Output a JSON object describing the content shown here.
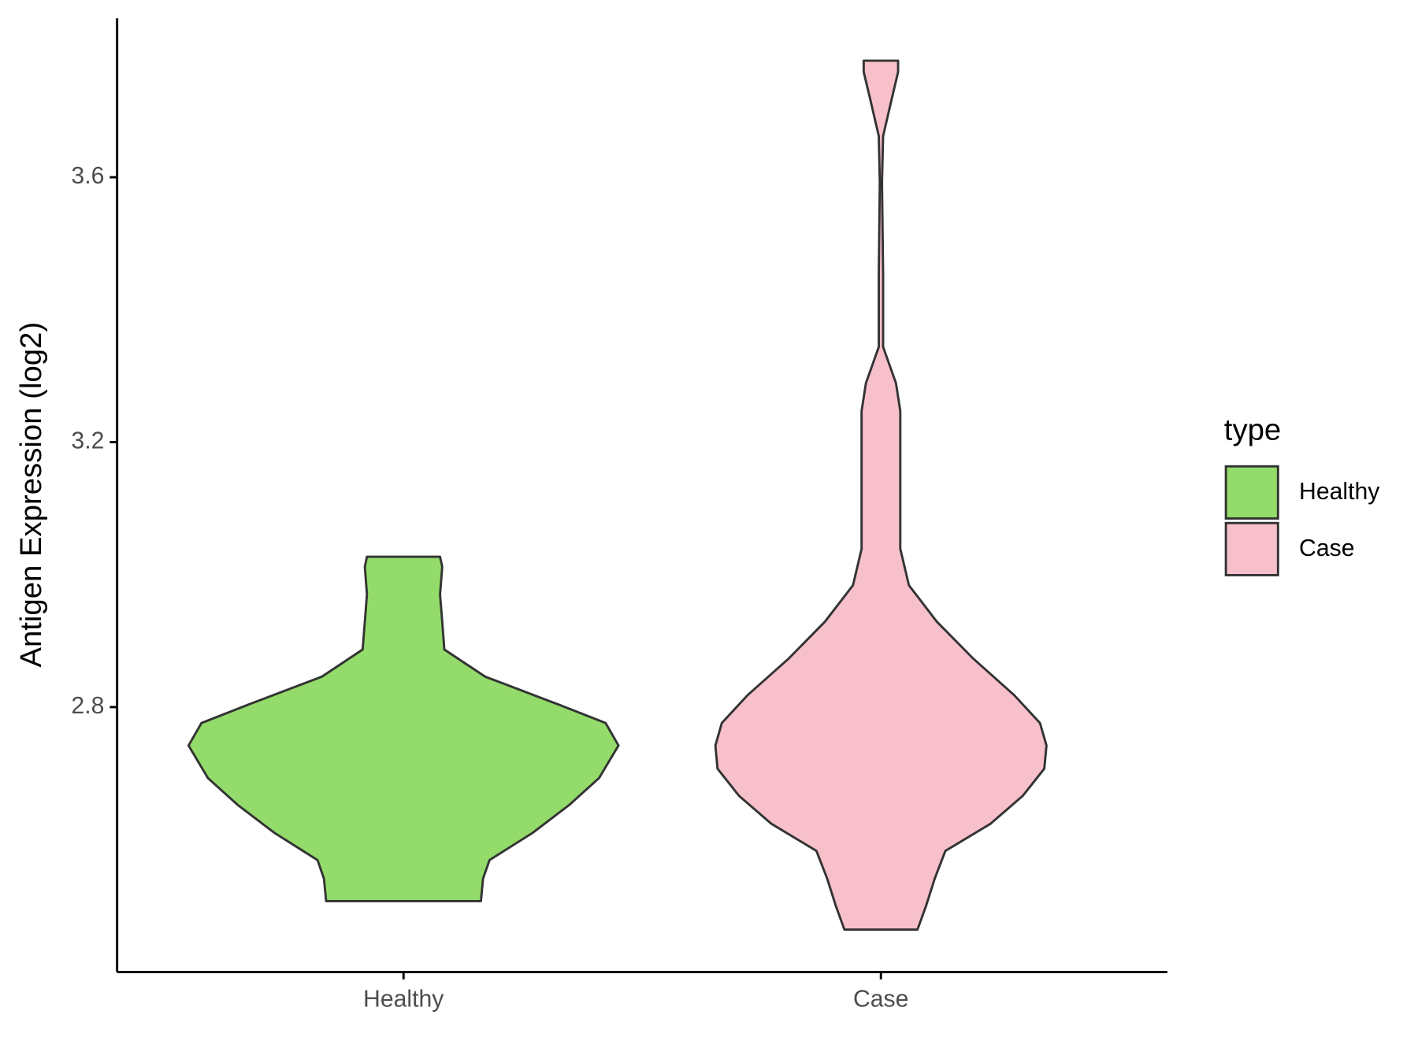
{
  "chart_data": {
    "type": "violin",
    "y_label": "Antigen Expression (log2)",
    "categories": [
      "Healthy",
      "Case"
    ],
    "legend_title": "type",
    "legend_position": "right",
    "series": [
      {
        "name": "Healthy",
        "color": "#93db6a",
        "y": [
          2.507,
          2.541,
          2.569,
          2.61,
          2.652,
          2.693,
          2.742,
          2.776,
          2.804,
          2.846,
          2.887,
          2.929,
          2.97,
          3.012,
          3.027
        ],
        "density": [
          0.36,
          0.37,
          0.4,
          0.6,
          0.77,
          0.91,
          1.0,
          0.94,
          0.72,
          0.38,
          0.19,
          0.18,
          0.17,
          0.18,
          0.17
        ]
      },
      {
        "name": "Case",
        "color": "#f8c0cb",
        "y": [
          2.464,
          2.5,
          2.541,
          2.583,
          2.624,
          2.666,
          2.707,
          2.742,
          2.776,
          2.818,
          2.873,
          2.929,
          2.984,
          3.039,
          3.095,
          3.15,
          3.206,
          3.247,
          3.289,
          3.344,
          3.455,
          3.593,
          3.662,
          3.718,
          3.759,
          3.776
        ],
        "density": [
          0.17,
          0.21,
          0.25,
          0.3,
          0.51,
          0.66,
          0.76,
          0.77,
          0.74,
          0.62,
          0.43,
          0.26,
          0.13,
          0.09,
          0.09,
          0.09,
          0.09,
          0.09,
          0.07,
          0.01,
          0.01,
          0.005,
          0.01,
          0.05,
          0.08,
          0.08
        ]
      }
    ],
    "ylim": [
      2.4,
      3.84
    ],
    "yticks": [
      2.8,
      3.2,
      3.6
    ],
    "grid": false
  }
}
